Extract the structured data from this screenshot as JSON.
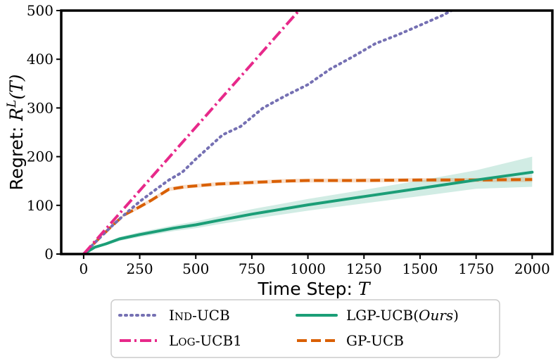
{
  "chart_data": {
    "type": "line",
    "xlabel": "Time Step: ",
    "xlabel_math": "T",
    "ylabel": "Regret: ",
    "ylabel_math": "R^L(T)",
    "xlim": [
      -100,
      2090
    ],
    "ylim": [
      0,
      500
    ],
    "x_ticks": [
      0,
      250,
      500,
      750,
      1000,
      1250,
      1500,
      1750,
      2000
    ],
    "y_ticks": [
      0,
      100,
      200,
      300,
      400,
      500
    ],
    "grid": false,
    "legend_position": "bottom",
    "series": [
      {
        "name": "Ind-UCB",
        "label_parts": [
          "I",
          "ND",
          "-UCB"
        ],
        "color": "#7570b3",
        "style": "dotted",
        "x": [
          0,
          60,
          120,
          180,
          250,
          320,
          380,
          440,
          500,
          560,
          620,
          700,
          800,
          900,
          1000,
          1100,
          1200,
          1300,
          1400,
          1500,
          1600,
          1640
        ],
        "y": [
          0,
          28,
          55,
          80,
          108,
          132,
          152,
          168,
          195,
          220,
          245,
          262,
          300,
          325,
          348,
          380,
          405,
          432,
          450,
          470,
          490,
          500
        ]
      },
      {
        "name": "Log-UCB1",
        "label_parts": [
          "L",
          "OG",
          "-UCB1"
        ],
        "color": "#e7298a",
        "style": "dashdot",
        "x": [
          0,
          960
        ],
        "y": [
          0,
          500
        ]
      },
      {
        "name": "LGP-UCB(Ours)",
        "label_parts": [
          "LGP-UCB(",
          "Ours",
          ")"
        ],
        "color": "#1b9e77",
        "style": "solid",
        "x": [
          0,
          50,
          100,
          160,
          250,
          400,
          500,
          600,
          750,
          1000,
          1250,
          1500,
          1750,
          2000
        ],
        "y": [
          0,
          14,
          21,
          31,
          40,
          53,
          60,
          69,
          82,
          101,
          118,
          135,
          152,
          168
        ],
        "band_lower": [
          0,
          12,
          18,
          27,
          35,
          47,
          53,
          61,
          72,
          89,
          104,
          119,
          134,
          138
        ],
        "band_upper": [
          0,
          16,
          24,
          35,
          45,
          59,
          67,
          77,
          92,
          113,
          132,
          151,
          172,
          200
        ]
      },
      {
        "name": "GP-UCB",
        "label_parts": [
          "GP-UCB"
        ],
        "color": "#d95f02",
        "style": "dashed",
        "x": [
          0,
          60,
          120,
          180,
          250,
          300,
          380,
          450,
          600,
          800,
          900,
          1000,
          1200,
          1500,
          1750,
          2000
        ],
        "y": [
          0,
          28,
          55,
          80,
          97,
          110,
          133,
          138,
          144,
          148,
          150,
          151,
          151,
          152,
          152,
          153
        ],
        "band_lower": [
          0,
          27,
          53,
          77,
          93,
          106,
          129,
          134,
          140,
          144,
          146,
          147,
          147,
          148,
          148,
          148
        ],
        "band_upper": [
          0,
          29,
          57,
          83,
          101,
          114,
          137,
          142,
          148,
          152,
          154,
          155,
          155,
          156,
          156,
          158
        ]
      }
    ]
  }
}
